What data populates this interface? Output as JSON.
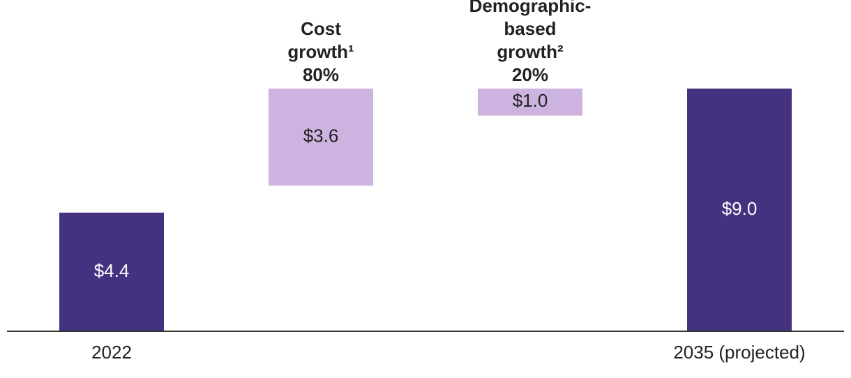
{
  "chart_data": {
    "type": "waterfall",
    "categories": [
      "2022",
      "Cost growth¹",
      "Demographic-based growth²",
      "2035 (projected)"
    ],
    "values": [
      4.4,
      3.6,
      1.0,
      9.0
    ],
    "value_labels": [
      "$4.4",
      "$3.6",
      "$1.0",
      "$9.0"
    ],
    "shares": [
      null,
      80,
      20,
      null
    ],
    "share_labels": [
      null,
      "80%",
      "20%",
      null
    ],
    "colors": [
      "#443280",
      "#cdb3e0",
      "#cdb3e0",
      "#443280"
    ],
    "ylim": [
      0,
      9.0
    ]
  }
}
